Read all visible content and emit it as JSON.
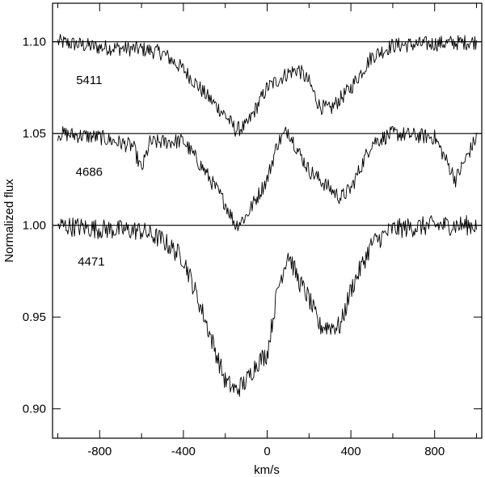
{
  "chart_data": {
    "type": "line",
    "title": "",
    "xlabel": "km/s",
    "ylabel": "Normalized flux",
    "xlim": [
      -1025,
      1025
    ],
    "ylim": [
      0.884,
      1.121
    ],
    "x_ticks": [
      -800,
      -400,
      0,
      400,
      800
    ],
    "x_tick_labels": [
      "-800",
      "-400",
      "0",
      "400",
      "800"
    ],
    "y_ticks": [
      0.9,
      0.95,
      1.0,
      1.05,
      1.1
    ],
    "y_tick_labels": [
      "0.90",
      "0.95",
      "1.00",
      "1.05",
      "1.10"
    ],
    "minor_x_step": 200,
    "grid": false,
    "legend": "none",
    "reference_lines": [
      1.1,
      1.05,
      1.0
    ],
    "series": [
      {
        "name": "5411",
        "offset": 0.1,
        "label_position": {
          "x": -850,
          "y": 1.077
        },
        "x": [
          -1000,
          -800,
          -600,
          -500,
          -400,
          -300,
          -200,
          -150,
          -100,
          0,
          100,
          150,
          200,
          250,
          300,
          400,
          500,
          600,
          800,
          1000
        ],
        "y": [
          1.1,
          1.097,
          1.096,
          1.094,
          1.085,
          1.072,
          1.06,
          1.052,
          1.054,
          1.075,
          1.083,
          1.085,
          1.078,
          1.065,
          1.063,
          1.075,
          1.092,
          1.098,
          1.099,
          1.1
        ]
      },
      {
        "name": "4686",
        "offset": 0.05,
        "label_position": {
          "x": -850,
          "y": 1.027
        },
        "x": [
          -1000,
          -800,
          -640,
          -600,
          -560,
          -400,
          -300,
          -200,
          -150,
          -100,
          0,
          50,
          100,
          150,
          200,
          300,
          350,
          400,
          500,
          600,
          800,
          900,
          1000
        ],
        "y": [
          1.05,
          1.048,
          1.043,
          1.03,
          1.045,
          1.046,
          1.03,
          1.012,
          1.0,
          1.005,
          1.025,
          1.045,
          1.052,
          1.04,
          1.03,
          1.02,
          1.015,
          1.02,
          1.045,
          1.05,
          1.048,
          1.025,
          1.048
        ]
      },
      {
        "name": "4471",
        "offset": 0.0,
        "label_position": {
          "x": -840,
          "y": 0.978
        },
        "x": [
          -1000,
          -800,
          -600,
          -500,
          -400,
          -300,
          -200,
          -150,
          -100,
          -50,
          0,
          50,
          100,
          150,
          200,
          250,
          300,
          350,
          400,
          500,
          600,
          800,
          1000
        ],
        "y": [
          1.0,
          0.998,
          0.997,
          0.992,
          0.982,
          0.95,
          0.915,
          0.91,
          0.915,
          0.925,
          0.93,
          0.965,
          0.985,
          0.97,
          0.96,
          0.945,
          0.945,
          0.945,
          0.965,
          0.99,
          0.998,
          1.0,
          1.0
        ]
      }
    ]
  }
}
